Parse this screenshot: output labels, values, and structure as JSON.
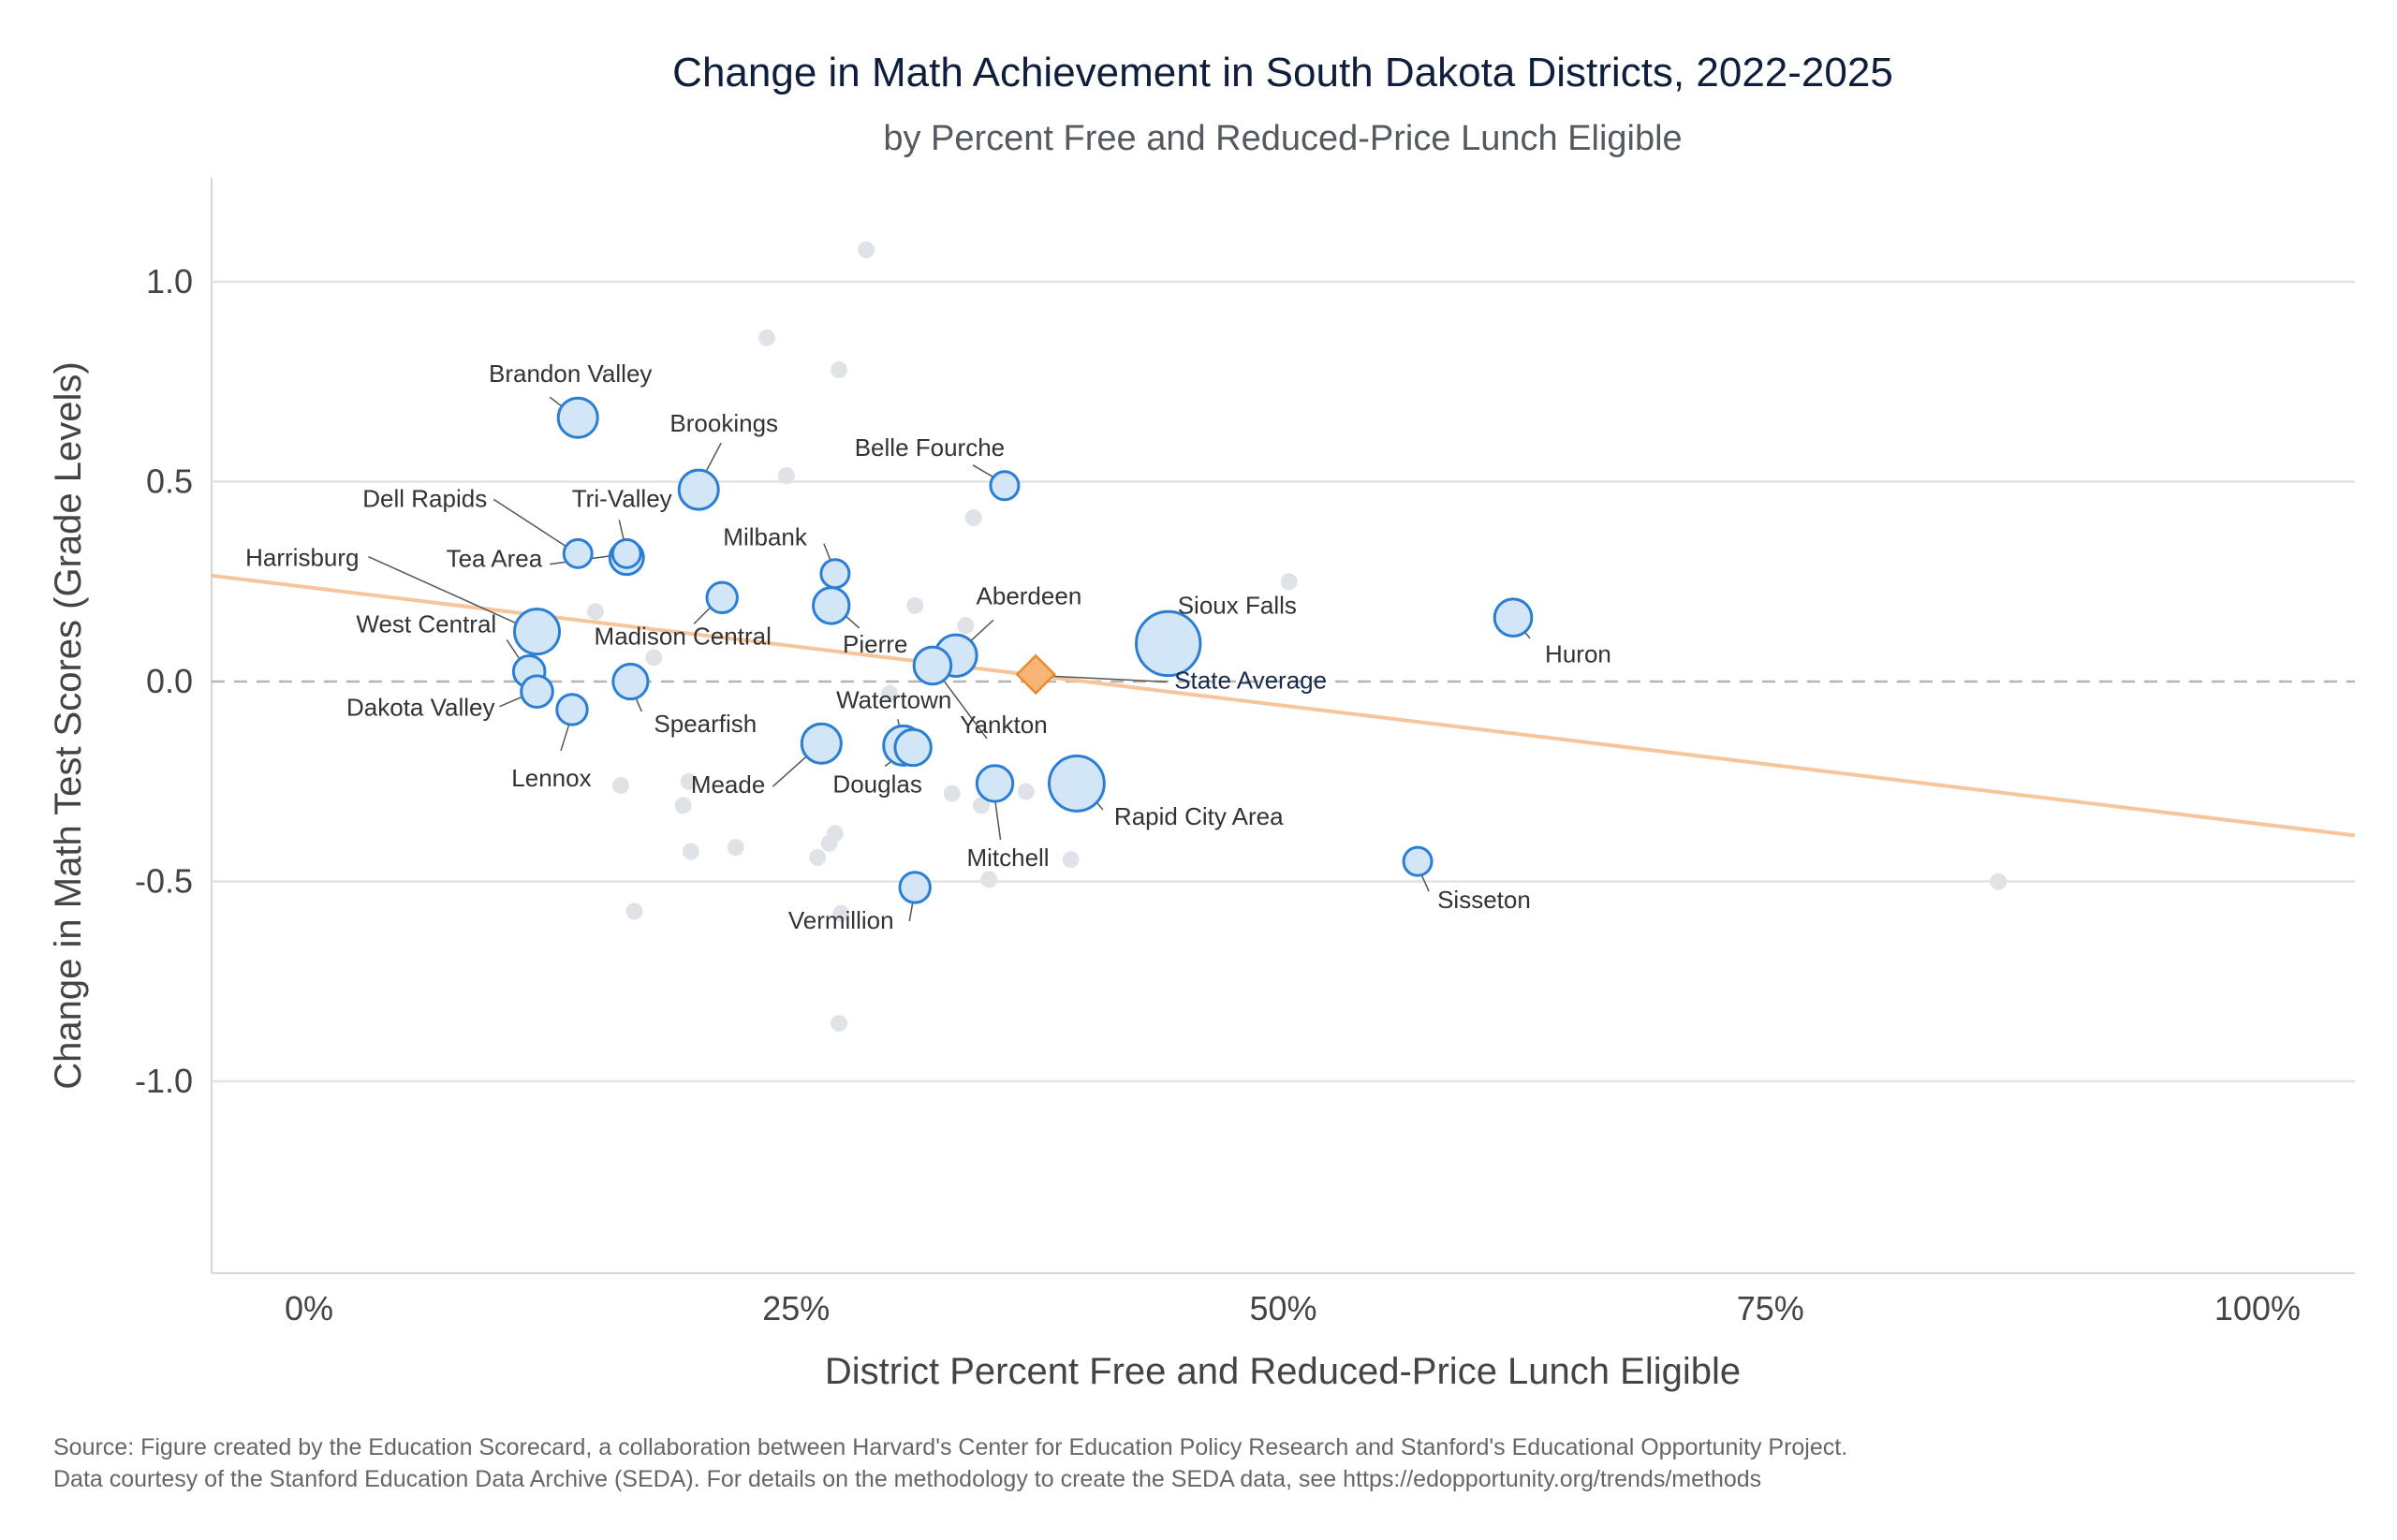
{
  "chart_data": {
    "type": "scatter",
    "title": "Change in Math Achievement in South Dakota Districts, 2022-2025",
    "subtitle": "by Percent Free and Reduced-Price Lunch Eligible",
    "xlabel": "District Percent Free and Reduced-Price Lunch Eligible",
    "ylabel": "Change in Math Test Scores (Grade Levels)",
    "xlim": [
      -0.05,
      1.05
    ],
    "ylim": [
      -1.48,
      1.26
    ],
    "x_ticks": [
      {
        "value": 0,
        "label": "0%"
      },
      {
        "value": 0.25,
        "label": "25%"
      },
      {
        "value": 0.5,
        "label": "50%"
      },
      {
        "value": 0.75,
        "label": "75%"
      },
      {
        "value": 1.0,
        "label": "100%"
      }
    ],
    "y_ticks": [
      {
        "value": 1.0,
        "label": "1.0"
      },
      {
        "value": 0.5,
        "label": "0.5"
      },
      {
        "value": 0.0,
        "label": "0.0"
      },
      {
        "value": -0.5,
        "label": "-0.5"
      },
      {
        "value": -1.0,
        "label": "-1.0"
      }
    ],
    "grid": true,
    "colors": {
      "highlight_fill": "#d3e6f8",
      "highlight_stroke": "#2a7fd4",
      "other_fill": "#dfe3e8",
      "trend": "#f7c59c",
      "state_fill": "#f7b477",
      "state_stroke": "#e88a2e",
      "zero_line": "#b5b5b5",
      "grid": "#e2e2e2"
    },
    "trend_line": {
      "x": [
        -0.05,
        1.05
      ],
      "y": [
        0.265,
        -0.385
      ]
    },
    "state_average": {
      "label": "State Average",
      "x": 0.373,
      "y": 0.018
    },
    "highlighted_districts": [
      {
        "name": "Brandon Valley",
        "x": 0.138,
        "y": 0.66,
        "size": 2
      },
      {
        "name": "Brookings",
        "x": 0.2,
        "y": 0.48,
        "size": 2
      },
      {
        "name": "Belle Fourche",
        "x": 0.357,
        "y": 0.49,
        "size": 1
      },
      {
        "name": "Dell Rapids",
        "x": 0.138,
        "y": 0.32,
        "size": 1
      },
      {
        "name": "Tri-Valley",
        "x": 0.163,
        "y": 0.32,
        "size": 1
      },
      {
        "name": "Tea Area",
        "x": 0.163,
        "y": 0.31,
        "size": 1.5
      },
      {
        "name": "Milbank",
        "x": 0.27,
        "y": 0.27,
        "size": 1
      },
      {
        "name": "Harrisburg",
        "x": 0.117,
        "y": 0.125,
        "size": 2.5
      },
      {
        "name": "Madison Central",
        "x": 0.212,
        "y": 0.21,
        "size": 1.2
      },
      {
        "name": "Pierre",
        "x": 0.268,
        "y": 0.19,
        "size": 1.7
      },
      {
        "name": "Aberdeen",
        "x": 0.332,
        "y": 0.065,
        "size": 2.2
      },
      {
        "name": "Sioux Falls",
        "x": 0.441,
        "y": 0.095,
        "size": 4.2
      },
      {
        "name": "Huron",
        "x": 0.618,
        "y": 0.16,
        "size": 1.8
      },
      {
        "name": "West Central",
        "x": 0.113,
        "y": 0.025,
        "size": 1.3
      },
      {
        "name": "Dakota Valley",
        "x": 0.117,
        "y": -0.025,
        "size": 1.3
      },
      {
        "name": "Spearfish",
        "x": 0.165,
        "y": 0.0,
        "size": 1.6
      },
      {
        "name": "Lennox",
        "x": 0.135,
        "y": -0.07,
        "size": 1.2
      },
      {
        "name": "Yankton",
        "x": 0.32,
        "y": 0.04,
        "size": 1.8
      },
      {
        "name": "Watertown",
        "x": 0.305,
        "y": -0.16,
        "size": 2.0
      },
      {
        "name": "Douglas",
        "x": 0.31,
        "y": -0.165,
        "size": 1.7
      },
      {
        "name": "Meade",
        "x": 0.263,
        "y": -0.155,
        "size": 2.0
      },
      {
        "name": "Rapid City Area",
        "x": 0.394,
        "y": -0.255,
        "size": 3.4
      },
      {
        "name": "Mitchell",
        "x": 0.352,
        "y": -0.255,
        "size": 1.7
      },
      {
        "name": "Sisseton",
        "x": 0.569,
        "y": -0.45,
        "size": 1.0
      },
      {
        "name": "Vermillion",
        "x": 0.311,
        "y": -0.515,
        "size": 1.2
      }
    ],
    "other_districts": [
      {
        "x": 0.286,
        "y": 1.08
      },
      {
        "x": 0.235,
        "y": 0.86
      },
      {
        "x": 0.272,
        "y": 0.78
      },
      {
        "x": 0.245,
        "y": 0.515
      },
      {
        "x": 0.341,
        "y": 0.41
      },
      {
        "x": 0.503,
        "y": 0.25
      },
      {
        "x": 0.147,
        "y": 0.175
      },
      {
        "x": 0.311,
        "y": 0.19
      },
      {
        "x": 0.337,
        "y": 0.14
      },
      {
        "x": 0.177,
        "y": 0.06
      },
      {
        "x": 0.298,
        "y": -0.03
      },
      {
        "x": 0.16,
        "y": -0.26
      },
      {
        "x": 0.195,
        "y": -0.25
      },
      {
        "x": 0.192,
        "y": -0.31
      },
      {
        "x": 0.33,
        "y": -0.28
      },
      {
        "x": 0.345,
        "y": -0.31
      },
      {
        "x": 0.368,
        "y": -0.275
      },
      {
        "x": 0.196,
        "y": -0.425
      },
      {
        "x": 0.219,
        "y": -0.415
      },
      {
        "x": 0.261,
        "y": -0.44
      },
      {
        "x": 0.267,
        "y": -0.405
      },
      {
        "x": 0.27,
        "y": -0.38
      },
      {
        "x": 0.349,
        "y": -0.495
      },
      {
        "x": 0.391,
        "y": -0.445
      },
      {
        "x": 0.167,
        "y": -0.575
      },
      {
        "x": 0.273,
        "y": -0.58
      },
      {
        "x": 0.272,
        "y": -0.855
      },
      {
        "x": 0.867,
        "y": -0.5
      }
    ]
  },
  "footer": {
    "source_line1": "Source: Figure created by the Education Scorecard, a collaboration between Harvard's Center for Education Policy Research and Stanford's Educational Opportunity Project.",
    "source_line2": "Data courtesy of the Stanford Education Data Archive (SEDA). For details on the methodology to create the SEDA data, see https://edopportunity.org/trends/methods"
  }
}
